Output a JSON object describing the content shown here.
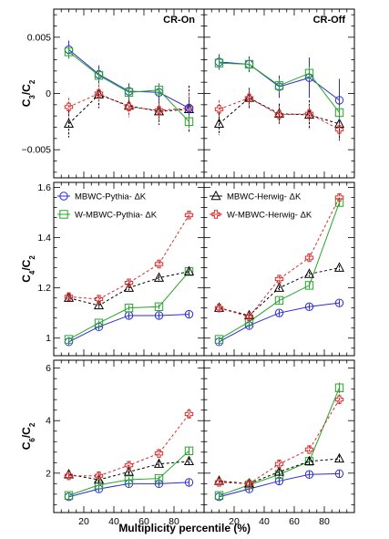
{
  "figure": {
    "xlabel": "Multiplicity percentile (%)",
    "col_titles": [
      "CR-On",
      "CR-Off"
    ],
    "legend": [
      {
        "label": "MBWC-Pythia- ΔK",
        "series": "mbwc_pythia"
      },
      {
        "label": "MBWC-Herwig- ΔK",
        "series": "mbwc_herwig"
      },
      {
        "label": "W-MBWC-Pythia- ΔK",
        "series": "wmbwc_pythia"
      },
      {
        "label": "W-MBWC-Herwig- ΔK",
        "series": "wmbwc_herwig"
      }
    ],
    "series_styles": {
      "mbwc_pythia": {
        "color": "#2b2bd9",
        "marker": "circle",
        "dash": "solid"
      },
      "wmbwc_pythia": {
        "color": "#26a626",
        "marker": "square",
        "dash": "solid"
      },
      "mbwc_herwig": {
        "color": "#000000",
        "marker": "triangle",
        "dash": "dashed"
      },
      "wmbwc_herwig": {
        "color": "#d92b2b",
        "marker": "cross",
        "dash": "dashed"
      }
    }
  },
  "chart_data": [
    {
      "type": "line",
      "row": 0,
      "col": 0,
      "title": "CR-On",
      "ylabel": "C3/C2",
      "xlim": [
        0,
        100
      ],
      "ylim": [
        -0.0075,
        0.0075
      ],
      "yticks": [
        -0.005,
        0,
        0.005
      ],
      "ytick_labels": [
        "−0.005",
        "0",
        "0.005"
      ],
      "xticks": [
        20,
        40,
        60,
        80
      ],
      "xtick_labels": [
        "",
        "",
        "",
        ""
      ],
      "series": [
        {
          "key": "mbwc_herwig",
          "x": [
            10,
            30,
            50,
            70,
            90
          ],
          "y": [
            -0.0027,
            -0.0001,
            -0.0011,
            -0.0016,
            -0.0014
          ],
          "err": [
            0.0012,
            0.0012,
            0.001,
            0.0012,
            0.0021
          ]
        },
        {
          "key": "wmbwc_herwig",
          "x": [
            10,
            30,
            50,
            70,
            90
          ],
          "y": [
            -0.0012,
            0.0,
            -0.0012,
            -0.0015,
            -0.0013
          ],
          "err": [
            0.0008,
            0.0008,
            0.0008,
            0.001,
            0.0013
          ]
        },
        {
          "key": "mbwc_pythia",
          "x": [
            10,
            30,
            50,
            70,
            90
          ],
          "y": [
            0.0039,
            0.0017,
            0.0002,
            0.0001,
            -0.0013
          ],
          "err": [
            0.0008,
            0.0008,
            0.0007,
            0.0008,
            0.0008
          ]
        },
        {
          "key": "wmbwc_pythia",
          "x": [
            10,
            30,
            50,
            70,
            90
          ],
          "y": [
            0.0037,
            0.0016,
            0.0001,
            0.0003,
            -0.0025
          ],
          "err": [
            0.0005,
            0.0005,
            0.0005,
            0.0005,
            0.0006
          ]
        }
      ]
    },
    {
      "type": "line",
      "row": 0,
      "col": 1,
      "title": "CR-Off",
      "ylabel": "",
      "xlim": [
        0,
        100
      ],
      "ylim": [
        -0.0075,
        0.0075
      ],
      "yticks": [
        -0.005,
        0,
        0.005
      ],
      "ytick_labels": [
        "",
        "",
        ""
      ],
      "xticks": [
        20,
        40,
        60,
        80
      ],
      "xtick_labels": [
        "",
        "",
        "",
        ""
      ],
      "series": [
        {
          "key": "mbwc_herwig",
          "x": [
            10,
            30,
            50,
            70,
            90
          ],
          "y": [
            -0.0027,
            -0.0004,
            -0.0018,
            -0.0019,
            -0.0027
          ],
          "err": [
            0.001,
            0.0009,
            0.0009,
            0.0013,
            0.0015
          ]
        },
        {
          "key": "wmbwc_herwig",
          "x": [
            10,
            30,
            50,
            70,
            90
          ],
          "y": [
            -0.0014,
            -0.0004,
            -0.0019,
            -0.0018,
            -0.0032
          ],
          "err": [
            0.0008,
            0.0008,
            0.0008,
            0.0008,
            0.0009
          ]
        },
        {
          "key": "mbwc_pythia",
          "x": [
            10,
            30,
            50,
            70,
            90
          ],
          "y": [
            0.0028,
            0.0026,
            0.0006,
            0.0014,
            -0.0006
          ],
          "err": [
            0.0007,
            0.0007,
            0.001,
            0.0018,
            0.0019
          ]
        },
        {
          "key": "wmbwc_pythia",
          "x": [
            10,
            30,
            50,
            70,
            90
          ],
          "y": [
            0.0027,
            0.0026,
            0.0007,
            0.0018,
            -0.0017
          ],
          "err": [
            0.0005,
            0.0005,
            0.0006,
            0.0006,
            0.0006
          ]
        }
      ]
    },
    {
      "type": "line",
      "row": 1,
      "col": 0,
      "title": "",
      "ylabel": "C4/C2",
      "xlim": [
        0,
        100
      ],
      "ylim": [
        0.93,
        1.62
      ],
      "yticks": [
        1.0,
        1.2,
        1.4,
        1.6
      ],
      "ytick_labels": [
        "1",
        "1.2",
        "1.4",
        "1.6"
      ],
      "xticks": [
        20,
        40,
        60,
        80
      ],
      "xtick_labels": [
        "",
        "",
        "",
        ""
      ],
      "series": [
        {
          "key": "mbwc_pythia",
          "x": [
            10,
            30,
            50,
            70,
            90
          ],
          "y": [
            0.985,
            1.045,
            1.09,
            1.09,
            1.095
          ],
          "err": [
            0.012,
            0.012,
            0.012,
            0.012,
            0.012
          ]
        },
        {
          "key": "wmbwc_pythia",
          "x": [
            10,
            30,
            50,
            70,
            90
          ],
          "y": [
            0.995,
            1.06,
            1.12,
            1.125,
            1.265
          ],
          "err": [
            0.01,
            0.01,
            0.01,
            0.01,
            0.012
          ]
        },
        {
          "key": "mbwc_herwig",
          "x": [
            10,
            30,
            50,
            70,
            90
          ],
          "y": [
            1.16,
            1.13,
            1.2,
            1.24,
            1.265
          ],
          "err": [
            0.01,
            0.01,
            0.01,
            0.01,
            0.01
          ]
        },
        {
          "key": "wmbwc_herwig",
          "x": [
            10,
            30,
            50,
            70,
            90
          ],
          "y": [
            1.165,
            1.155,
            1.22,
            1.295,
            1.49
          ],
          "err": [
            0.012,
            0.012,
            0.012,
            0.012,
            0.012
          ]
        }
      ]
    },
    {
      "type": "line",
      "row": 1,
      "col": 1,
      "title": "",
      "ylabel": "",
      "xlim": [
        0,
        100
      ],
      "ylim": [
        0.93,
        1.62
      ],
      "yticks": [
        1.0,
        1.2,
        1.4,
        1.6
      ],
      "ytick_labels": [
        "",
        "",
        "",
        ""
      ],
      "xticks": [
        20,
        40,
        60,
        80
      ],
      "xtick_labels": [
        "",
        "",
        "",
        ""
      ],
      "series": [
        {
          "key": "mbwc_pythia",
          "x": [
            10,
            30,
            50,
            70,
            90
          ],
          "y": [
            0.985,
            1.05,
            1.1,
            1.125,
            1.14
          ],
          "err": [
            0.012,
            0.012,
            0.012,
            0.012,
            0.012
          ]
        },
        {
          "key": "wmbwc_pythia",
          "x": [
            10,
            30,
            50,
            70,
            90
          ],
          "y": [
            0.995,
            1.065,
            1.15,
            1.21,
            1.54
          ],
          "err": [
            0.01,
            0.01,
            0.012,
            0.012,
            0.015
          ]
        },
        {
          "key": "mbwc_herwig",
          "x": [
            10,
            30,
            50,
            70,
            90
          ],
          "y": [
            1.12,
            1.09,
            1.2,
            1.255,
            1.28
          ],
          "err": [
            0.01,
            0.01,
            0.01,
            0.01,
            0.01
          ]
        },
        {
          "key": "wmbwc_herwig",
          "x": [
            10,
            30,
            50,
            70,
            90
          ],
          "y": [
            1.12,
            1.085,
            1.235,
            1.32,
            1.56
          ],
          "err": [
            0.012,
            0.012,
            0.012,
            0.012,
            0.015
          ]
        }
      ]
    },
    {
      "type": "line",
      "row": 2,
      "col": 0,
      "title": "",
      "ylabel": "C6/C2",
      "xlim": [
        0,
        100
      ],
      "ylim": [
        0.5,
        6.3
      ],
      "yticks": [
        2,
        4,
        6
      ],
      "ytick_labels": [
        "2",
        "4",
        "6"
      ],
      "xticks": [
        20,
        40,
        60,
        80
      ],
      "xtick_labels": [
        "20",
        "40",
        "60",
        "80"
      ],
      "series": [
        {
          "key": "mbwc_pythia",
          "x": [
            10,
            30,
            50,
            70,
            90
          ],
          "y": [
            1.1,
            1.4,
            1.6,
            1.6,
            1.65
          ],
          "err": [
            0.12,
            0.12,
            0.12,
            0.12,
            0.12
          ]
        },
        {
          "key": "wmbwc_pythia",
          "x": [
            10,
            30,
            50,
            70,
            90
          ],
          "y": [
            1.15,
            1.55,
            1.75,
            1.8,
            2.85
          ],
          "err": [
            0.1,
            0.1,
            0.1,
            0.1,
            0.15
          ]
        },
        {
          "key": "mbwc_herwig",
          "x": [
            10,
            30,
            50,
            70,
            90
          ],
          "y": [
            1.95,
            1.75,
            2.05,
            2.35,
            2.45
          ],
          "err": [
            0.12,
            0.12,
            0.12,
            0.12,
            0.12
          ]
        },
        {
          "key": "wmbwc_herwig",
          "x": [
            10,
            30,
            50,
            70,
            90
          ],
          "y": [
            1.9,
            1.9,
            2.3,
            2.75,
            4.25
          ],
          "err": [
            0.15,
            0.15,
            0.15,
            0.15,
            0.2
          ]
        }
      ]
    },
    {
      "type": "line",
      "row": 2,
      "col": 1,
      "title": "",
      "ylabel": "",
      "xlim": [
        0,
        100
      ],
      "ylim": [
        0.5,
        6.3
      ],
      "yticks": [
        2,
        4,
        6
      ],
      "ytick_labels": [
        "",
        "",
        ""
      ],
      "xticks": [
        20,
        40,
        60,
        80
      ],
      "xtick_labels": [
        "20",
        "40",
        "60",
        "80"
      ],
      "series": [
        {
          "key": "mbwc_pythia",
          "x": [
            10,
            30,
            50,
            70,
            90
          ],
          "y": [
            1.1,
            1.4,
            1.7,
            1.95,
            1.98
          ],
          "err": [
            0.12,
            0.12,
            0.12,
            0.12,
            0.12
          ]
        },
        {
          "key": "wmbwc_pythia",
          "x": [
            10,
            30,
            50,
            70,
            90
          ],
          "y": [
            1.15,
            1.55,
            1.95,
            2.45,
            5.25
          ],
          "err": [
            0.1,
            0.1,
            0.12,
            0.12,
            0.2
          ]
        },
        {
          "key": "mbwc_herwig",
          "x": [
            10,
            30,
            50,
            70,
            90
          ],
          "y": [
            1.7,
            1.6,
            2.05,
            2.45,
            2.55
          ],
          "err": [
            0.12,
            0.12,
            0.12,
            0.12,
            0.12
          ]
        },
        {
          "key": "wmbwc_herwig",
          "x": [
            10,
            30,
            50,
            70,
            90
          ],
          "y": [
            1.65,
            1.6,
            2.35,
            2.9,
            4.8
          ],
          "err": [
            0.15,
            0.15,
            0.15,
            0.15,
            0.2
          ]
        }
      ]
    }
  ]
}
